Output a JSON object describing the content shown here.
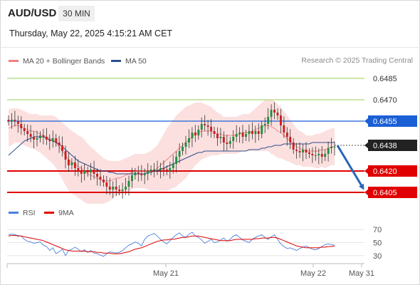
{
  "header": {
    "symbol": "AUD/USD",
    "timeframe": "30 MIN",
    "datetime": "Thursday, May 22, 2025 4:15:21 AM CET",
    "credit": "Research © 2025 Trading Central"
  },
  "legend": {
    "ma20": {
      "label": "MA 20 + Bollinger Bands",
      "color": "#f08080"
    },
    "ma50": {
      "label": "MA 50",
      "color": "#2c4f8c"
    },
    "rsi": {
      "label": "RSI",
      "color": "#4a7fe0"
    },
    "ma9": {
      "label": "9MA",
      "color": "#e00000"
    }
  },
  "chart_data": [
    {
      "type": "candlestick",
      "x_ticks": [
        "May 21",
        "May 22",
        "May 31"
      ],
      "ylim": [
        0.6398,
        0.6494
      ],
      "last_price": 0.6438,
      "levels": [
        {
          "value": 0.6485,
          "label": "0.6485",
          "kind": "target",
          "color": "#9acd5a"
        },
        {
          "value": 0.647,
          "label": "0.6470",
          "kind": "target",
          "color": "#9acd5a"
        },
        {
          "value": 0.6455,
          "label": "0.6455",
          "kind": "pivot",
          "color": "#1a5fd6"
        },
        {
          "value": 0.6438,
          "label": "0.6438",
          "kind": "last",
          "color": "#222222"
        },
        {
          "value": 0.642,
          "label": "0.6420",
          "kind": "support",
          "color": "#e00000"
        },
        {
          "value": 0.6405,
          "label": "0.6405",
          "kind": "support",
          "color": "#e00000"
        }
      ],
      "projection": {
        "from": 0.6438,
        "to": 0.6405,
        "direction": "down",
        "color": "#2a65b5"
      },
      "closes": [
        0.6455,
        0.6456,
        0.6455,
        0.6453,
        0.645,
        0.6448,
        0.6446,
        0.6444,
        0.6442,
        0.6443,
        0.6445,
        0.6444,
        0.6442,
        0.6441,
        0.6443,
        0.644,
        0.6438,
        0.6434,
        0.6428,
        0.6424,
        0.6426,
        0.6422,
        0.642,
        0.6418,
        0.642,
        0.6419,
        0.6421,
        0.6418,
        0.6416,
        0.6414,
        0.6412,
        0.6409,
        0.6407,
        0.6409,
        0.6407,
        0.6406,
        0.6407,
        0.6409,
        0.6413,
        0.6417,
        0.6419,
        0.6418,
        0.6417,
        0.6418,
        0.642,
        0.6421,
        0.6421,
        0.6421,
        0.6422,
        0.6421,
        0.642,
        0.6422,
        0.6425,
        0.643,
        0.6434,
        0.6437,
        0.644,
        0.6443,
        0.6447,
        0.6445,
        0.6449,
        0.6453,
        0.6452,
        0.6451,
        0.6448,
        0.6446,
        0.6443,
        0.6444,
        0.644,
        0.6439,
        0.6441,
        0.6444,
        0.6446,
        0.6447,
        0.6444,
        0.6446,
        0.6448,
        0.6446,
        0.6448,
        0.6446,
        0.6452,
        0.6453,
        0.6458,
        0.6463,
        0.6461,
        0.6459,
        0.6452,
        0.6447,
        0.6444,
        0.644,
        0.6435,
        0.6434,
        0.6433,
        0.6435,
        0.6433,
        0.6432,
        0.6431,
        0.6431,
        0.6432,
        0.643,
        0.6432,
        0.6436,
        0.6437,
        0.6437
      ],
      "ma20": [
        0.645,
        0.6451,
        0.6452,
        0.6452,
        0.6451,
        0.645,
        0.6449,
        0.6448,
        0.6448,
        0.6447,
        0.6446,
        0.6445,
        0.6444,
        0.6443,
        0.6442,
        0.644,
        0.6437,
        0.6434,
        0.6431,
        0.6428,
        0.6426,
        0.6425,
        0.6423,
        0.6422,
        0.642,
        0.6418,
        0.6417,
        0.6416,
        0.6415,
        0.6414,
        0.6413,
        0.6413,
        0.6413,
        0.6414,
        0.6415,
        0.6415,
        0.6416,
        0.6417,
        0.6418,
        0.6419,
        0.642,
        0.642,
        0.642,
        0.642,
        0.642,
        0.642,
        0.6421,
        0.6422,
        0.6424,
        0.6426,
        0.6428,
        0.643,
        0.6432,
        0.6434,
        0.6436,
        0.6438,
        0.644,
        0.6442,
        0.6444,
        0.6446,
        0.6447,
        0.6448,
        0.6448,
        0.6448,
        0.6448,
        0.6447,
        0.6446,
        0.6446,
        0.6445,
        0.6445,
        0.6445,
        0.6445,
        0.6445,
        0.6446,
        0.6447,
        0.6447,
        0.6447,
        0.6448,
        0.6449,
        0.645,
        0.6451,
        0.6452,
        0.6452,
        0.6451,
        0.645,
        0.6448,
        0.6447,
        0.6445,
        0.6443,
        0.6441,
        0.6439,
        0.6437,
        0.6436,
        0.6435,
        0.6434,
        0.6434,
        0.6434,
        0.6434,
        0.6434,
        0.6435,
        0.6435,
        0.6436,
        0.6437,
        0.6437
      ],
      "ma50": [
        0.6431,
        0.6433,
        0.6435,
        0.6437,
        0.6439,
        0.6441,
        0.6442,
        0.6443,
        0.6444,
        0.6444,
        0.6444,
        0.6444,
        0.6443,
        0.6442,
        0.6441,
        0.644,
        0.6439,
        0.6437,
        0.6435,
        0.6433,
        0.6431,
        0.6429,
        0.6427,
        0.6426,
        0.6425,
        0.6424,
        0.6423,
        0.6422,
        0.6421,
        0.642,
        0.642,
        0.642,
        0.6419,
        0.6419,
        0.6418,
        0.6418,
        0.6418,
        0.6418,
        0.6418,
        0.6418,
        0.6418,
        0.6418,
        0.6418,
        0.6418,
        0.6419,
        0.6419,
        0.642,
        0.642,
        0.6421,
        0.6422,
        0.6423,
        0.6424,
        0.6425,
        0.6426,
        0.6427,
        0.6428,
        0.6429,
        0.643,
        0.6431,
        0.6432,
        0.6433,
        0.6433,
        0.6434,
        0.6434,
        0.6434,
        0.6434,
        0.6434,
        0.6434,
        0.6434,
        0.6434,
        0.6434,
        0.6434,
        0.6434,
        0.6434,
        0.6434,
        0.6434,
        0.6435,
        0.6435,
        0.6435,
        0.6435,
        0.6436,
        0.6436,
        0.6437,
        0.6437,
        0.6438,
        0.6438,
        0.6438,
        0.6439,
        0.6439,
        0.6439,
        0.6439,
        0.6439,
        0.6439,
        0.6439,
        0.6439,
        0.6439,
        0.644,
        0.644,
        0.644,
        0.644,
        0.644,
        0.644,
        0.644,
        0.644
      ],
      "bb_width": [
        0.0013,
        0.0013,
        0.0012,
        0.0012,
        0.0012,
        0.0012,
        0.0012,
        0.0012,
        0.0012,
        0.0013,
        0.0013,
        0.0014,
        0.0015,
        0.0016,
        0.0017,
        0.0018,
        0.0019,
        0.002,
        0.0021,
        0.0022,
        0.0022,
        0.0022,
        0.0022,
        0.0022,
        0.0022,
        0.0021,
        0.002,
        0.0019,
        0.0018,
        0.0017,
        0.0016,
        0.0015,
        0.0014,
        0.0013,
        0.0012,
        0.0012,
        0.0012,
        0.0012,
        0.0012,
        0.0012,
        0.0012,
        0.0012,
        0.0012,
        0.0012,
        0.0013,
        0.0014,
        0.0015,
        0.0016,
        0.0018,
        0.002,
        0.0022,
        0.0023,
        0.0024,
        0.0025,
        0.0025,
        0.0025,
        0.0025,
        0.0024,
        0.0023,
        0.0022,
        0.0021,
        0.002,
        0.0019,
        0.0018,
        0.0017,
        0.0016,
        0.0015,
        0.0014,
        0.0013,
        0.0013,
        0.0013,
        0.0013,
        0.0013,
        0.0013,
        0.0013,
        0.0013,
        0.0013,
        0.0014,
        0.0015,
        0.0016,
        0.0017,
        0.0018,
        0.0018,
        0.0019,
        0.0019,
        0.0019,
        0.0018,
        0.0017,
        0.0016,
        0.0015,
        0.0014,
        0.0013,
        0.0012,
        0.0012,
        0.0011,
        0.0011,
        0.0011,
        0.0012,
        0.0012,
        0.0012,
        0.0013,
        0.0013,
        0.0013,
        0.0013
      ]
    },
    {
      "type": "line",
      "name": "RSI",
      "y_ticks": [
        70,
        50,
        30
      ],
      "ylim": [
        20,
        80
      ],
      "series": [
        {
          "name": "RSI",
          "values": [
            62,
            63,
            62,
            61,
            60,
            55,
            52,
            51,
            49,
            50,
            51,
            46,
            44,
            38,
            42,
            33,
            36,
            40,
            30,
            38,
            40,
            43,
            40,
            36,
            39,
            35,
            38,
            34,
            33,
            31,
            29,
            33,
            36,
            35,
            34,
            35,
            38,
            42,
            46,
            48,
            51,
            49,
            45,
            55,
            60,
            62,
            64,
            60,
            55,
            51,
            48,
            53,
            58,
            62,
            65,
            60,
            58,
            63,
            66,
            60,
            58,
            54,
            49,
            52,
            55,
            50,
            51,
            54,
            57,
            52,
            55,
            60,
            62,
            58,
            54,
            52,
            50,
            55,
            58,
            60,
            62,
            58,
            55,
            59,
            62,
            55,
            48,
            44,
            41,
            42,
            40,
            38,
            41,
            43,
            45,
            42,
            40,
            39,
            41,
            44,
            47,
            48,
            47,
            46
          ]
        },
        {
          "name": "9MA",
          "values": [
            60,
            61,
            61,
            60,
            60,
            59,
            58,
            57,
            56,
            55,
            54,
            53,
            51,
            49,
            47,
            45,
            43,
            41,
            39,
            38,
            37,
            37,
            37,
            37,
            37,
            36,
            36,
            36,
            35,
            35,
            34,
            34,
            34,
            33,
            33,
            33,
            34,
            35,
            36,
            38,
            40,
            41,
            42,
            44,
            46,
            48,
            50,
            52,
            53,
            54,
            54,
            55,
            55,
            56,
            57,
            58,
            58,
            59,
            60,
            60,
            60,
            59,
            58,
            57,
            56,
            55,
            54,
            53,
            53,
            53,
            53,
            54,
            55,
            55,
            55,
            55,
            55,
            55,
            56,
            56,
            57,
            57,
            57,
            58,
            58,
            57,
            55,
            53,
            51,
            49,
            47,
            45,
            44,
            43,
            42,
            42,
            42,
            42,
            42,
            43,
            43,
            44,
            44,
            45
          ]
        }
      ]
    }
  ]
}
